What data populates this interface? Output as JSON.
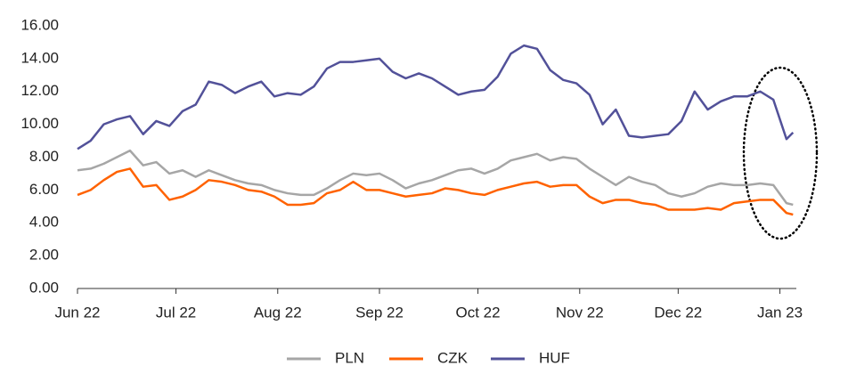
{
  "chart_data": {
    "type": "line",
    "x": [
      0,
      4,
      8,
      12,
      16,
      20,
      24,
      28,
      32,
      36,
      40,
      44,
      48,
      52,
      56,
      60,
      64,
      68,
      72,
      76,
      80,
      84,
      88,
      92,
      96,
      100,
      104,
      108,
      112,
      116,
      120,
      124,
      128,
      132,
      136,
      140,
      144,
      148,
      152,
      156,
      160,
      164,
      168,
      172,
      176,
      180,
      184,
      188,
      192,
      196,
      200,
      204,
      208,
      212,
      216,
      218
    ],
    "xlim": [
      0,
      219
    ],
    "xticks": [
      {
        "value": 0,
        "label": "Jun 22"
      },
      {
        "value": 30,
        "label": "Jul 22"
      },
      {
        "value": 61,
        "label": "Aug 22"
      },
      {
        "value": 92,
        "label": "Sep 22"
      },
      {
        "value": 122,
        "label": "Oct 22"
      },
      {
        "value": 153,
        "label": "Nov 22"
      },
      {
        "value": 183,
        "label": "Dec 22"
      },
      {
        "value": 214,
        "label": "Jan 23"
      }
    ],
    "ylim": [
      0,
      16
    ],
    "yticks": [
      {
        "value": 0,
        "label": "0.00"
      },
      {
        "value": 2,
        "label": "2.00"
      },
      {
        "value": 4,
        "label": "4.00"
      },
      {
        "value": 6,
        "label": "6.00"
      },
      {
        "value": 8,
        "label": "8.00"
      },
      {
        "value": 10,
        "label": "10.00"
      },
      {
        "value": 12,
        "label": "12.00"
      },
      {
        "value": 14,
        "label": "14.00"
      },
      {
        "value": 16,
        "label": "16.00"
      }
    ],
    "grid": false,
    "legend": "bottom",
    "series": [
      {
        "name": "PLN",
        "color": "#a6a6a6",
        "values": [
          7.2,
          7.3,
          7.6,
          8.0,
          8.4,
          7.5,
          7.7,
          7.0,
          7.2,
          6.8,
          7.2,
          6.9,
          6.6,
          6.4,
          6.3,
          6.0,
          5.8,
          5.7,
          5.7,
          6.1,
          6.6,
          7.0,
          6.9,
          7.0,
          6.6,
          6.1,
          6.4,
          6.6,
          6.9,
          7.2,
          7.3,
          7.0,
          7.3,
          7.8,
          8.0,
          8.2,
          7.8,
          8.0,
          7.9,
          7.3,
          6.8,
          6.3,
          6.8,
          6.5,
          6.3,
          5.8,
          5.6,
          5.8,
          6.2,
          6.4,
          6.3,
          6.3,
          6.4,
          6.3,
          5.2,
          5.1
        ]
      },
      {
        "name": "CZK",
        "color": "#ff6200",
        "values": [
          5.7,
          6.0,
          6.6,
          7.1,
          7.3,
          6.2,
          6.3,
          5.4,
          5.6,
          6.0,
          6.6,
          6.5,
          6.3,
          6.0,
          5.9,
          5.6,
          5.1,
          5.1,
          5.2,
          5.8,
          6.0,
          6.5,
          6.0,
          6.0,
          5.8,
          5.6,
          5.7,
          5.8,
          6.1,
          6.0,
          5.8,
          5.7,
          6.0,
          6.2,
          6.4,
          6.5,
          6.2,
          6.3,
          6.3,
          5.6,
          5.2,
          5.4,
          5.4,
          5.2,
          5.1,
          4.8,
          4.8,
          4.8,
          4.9,
          4.8,
          5.2,
          5.3,
          5.4,
          5.4,
          4.6,
          4.5
        ]
      },
      {
        "name": "HUF",
        "color": "#525199",
        "values": [
          8.5,
          9.0,
          10.0,
          10.3,
          10.5,
          9.4,
          10.2,
          9.9,
          10.8,
          11.2,
          12.6,
          12.4,
          11.9,
          12.3,
          12.6,
          11.7,
          11.9,
          11.8,
          12.3,
          13.4,
          13.8,
          13.8,
          13.9,
          14.0,
          13.2,
          12.8,
          13.1,
          12.8,
          12.3,
          11.8,
          12.0,
          12.1,
          12.9,
          14.3,
          14.8,
          14.6,
          13.3,
          12.7,
          12.5,
          11.8,
          10.0,
          10.9,
          9.3,
          9.2,
          9.3,
          9.4,
          10.2,
          12.0,
          10.9,
          11.4,
          11.7,
          11.7,
          12.0,
          11.5,
          9.1,
          9.5
        ]
      }
    ]
  }
}
